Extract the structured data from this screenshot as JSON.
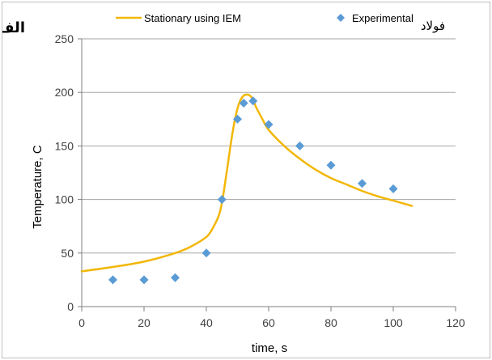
{
  "chart_data": {
    "type": "line",
    "xlabel": "time, s",
    "ylabel": "Temperature, C",
    "xlim": [
      0,
      120
    ],
    "ylim": [
      0,
      250
    ],
    "x_ticks": [
      0,
      20,
      40,
      60,
      80,
      100,
      120
    ],
    "y_ticks": [
      0,
      50,
      100,
      150,
      200,
      250
    ],
    "grid": "horizontal",
    "legend_position": "top",
    "series": [
      {
        "name": "Stationary using IEM",
        "kind": "line",
        "color": "#f2b707",
        "x": [
          0,
          10,
          20,
          30,
          35,
          40,
          42,
          44,
          45,
          46,
          47,
          48,
          49,
          50,
          51,
          52,
          53,
          54,
          55,
          56,
          58,
          60,
          65,
          70,
          75,
          80,
          85,
          90,
          95,
          100,
          106
        ],
        "y": [
          33,
          37,
          42,
          50,
          56,
          65,
          73,
          85,
          97,
          115,
          135,
          155,
          172,
          185,
          193,
          197,
          198,
          197,
          193,
          186,
          175,
          165,
          150,
          138,
          128,
          120,
          114,
          108,
          103,
          99,
          94
        ]
      },
      {
        "name": "Experimental",
        "kind": "scatter",
        "color": "#5b9bd5",
        "x": [
          10,
          20,
          30,
          40,
          45,
          50,
          52,
          55,
          60,
          70,
          80,
          90,
          100
        ],
        "y": [
          25,
          25,
          27,
          50,
          100,
          175,
          190,
          192,
          170,
          150,
          132,
          115,
          110
        ]
      }
    ]
  },
  "corner_labels": {
    "left": "الف",
    "right": "فولاد"
  }
}
